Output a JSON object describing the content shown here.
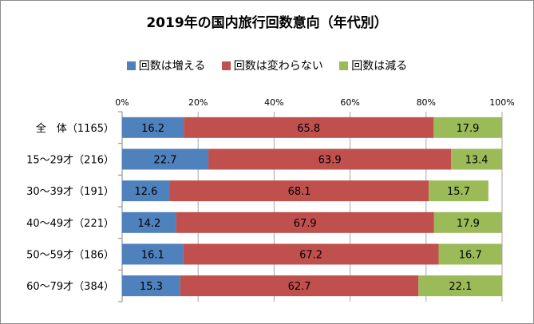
{
  "chart_data": {
    "type": "bar",
    "orientation": "horizontal",
    "stacked": "percent",
    "title": "2019年の国内旅行回数意向（年代別）",
    "categories": [
      "全　体（1165）",
      "15～29才（216）",
      "30～39才（191）",
      "40～49才（221）",
      "50～59才（186）",
      "60～79才（384）"
    ],
    "series": [
      {
        "name": "回数は増える",
        "color": "#4f81bd",
        "values": [
          16.2,
          22.7,
          12.6,
          14.2,
          16.1,
          15.3
        ]
      },
      {
        "name": "回数は変わらない",
        "color": "#c0504d",
        "values": [
          65.8,
          63.9,
          68.1,
          67.9,
          67.2,
          62.7
        ]
      },
      {
        "name": "回数は減る",
        "color": "#9bbb59",
        "values": [
          17.9,
          13.4,
          15.7,
          17.9,
          16.7,
          22.1
        ]
      }
    ],
    "x_ticks": [
      "0%",
      "20%",
      "40%",
      "60%",
      "80%",
      "100%"
    ],
    "xlim": [
      0,
      100
    ],
    "legend_position": "top",
    "grid": true
  }
}
